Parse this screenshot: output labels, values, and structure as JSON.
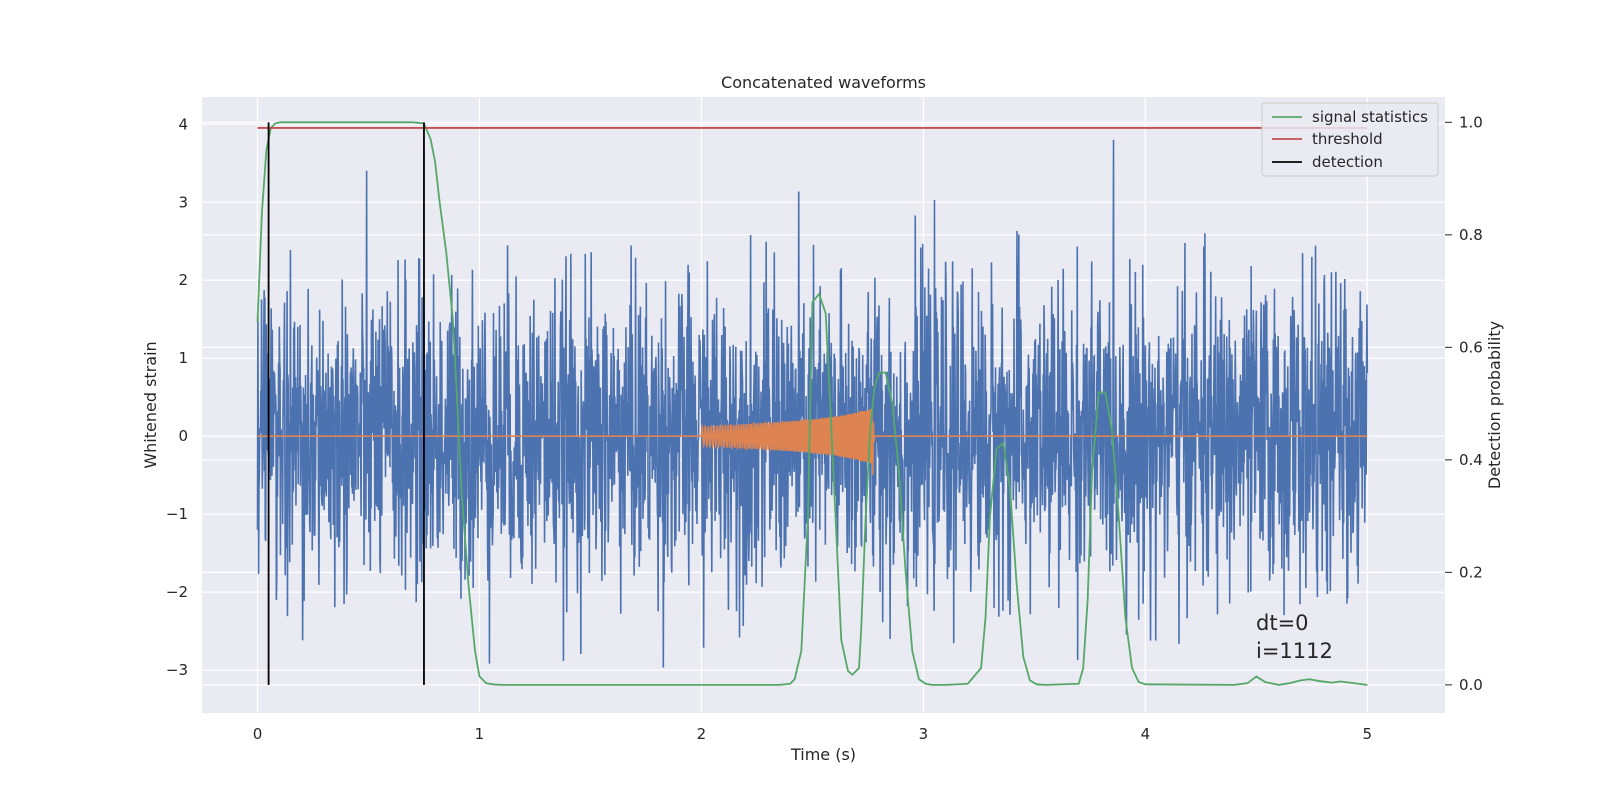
{
  "chart_data": {
    "type": "line",
    "title": "Concatenated waveforms",
    "xlabel": "Time (s)",
    "ylabel": "Whitened strain",
    "y2label": "Detection probability",
    "xlim": [
      -0.25,
      5.35
    ],
    "ylim": [
      -3.55,
      4.35
    ],
    "y2lim": [
      -0.05,
      1.045
    ],
    "x_ticks": [
      0,
      1,
      2,
      3,
      4,
      5
    ],
    "y_ticks": [
      -3,
      -2,
      -1,
      0,
      1,
      2,
      3,
      4
    ],
    "y2_ticks": [
      0.0,
      0.2,
      0.4,
      0.6,
      0.8,
      1.0
    ],
    "grid": true,
    "legend_position": "top-right",
    "colors": {
      "background": "#eaeaf2",
      "strain": "#4c72b0",
      "template": "#dd8452",
      "signal_statistics": "#55a868",
      "threshold": "#c44e52",
      "detection": "#000000"
    },
    "series": [
      {
        "name": "",
        "role": "whitened strain noise",
        "x_range": [
          0,
          5
        ],
        "amplitude_range": [
          -3.25,
          3.8
        ]
      },
      {
        "name": "",
        "role": "injected waveform",
        "x_range": [
          2.0,
          2.78
        ],
        "peak_amplitude": 0.35,
        "min_amplitude": -0.5
      },
      {
        "name": "signal statistics",
        "axis": "right",
        "x": [
          0,
          0.02,
          0.04,
          0.06,
          0.08,
          0.1,
          0.6,
          0.7,
          0.75,
          0.78,
          0.8,
          0.82,
          0.85,
          0.88,
          0.9,
          0.92,
          0.95,
          0.98,
          1.0,
          1.03,
          1.06,
          1.1,
          2.35,
          2.4,
          2.42,
          2.45,
          2.48,
          2.5,
          2.53,
          2.56,
          2.58,
          2.61,
          2.63,
          2.66,
          2.68,
          2.71,
          2.72,
          2.74,
          2.76,
          2.78,
          2.8,
          2.83,
          2.86,
          2.89,
          2.92,
          2.95,
          2.98,
          3.01,
          3.04,
          3.07,
          3.1,
          3.2,
          3.26,
          3.28,
          3.3,
          3.33,
          3.36,
          3.39,
          3.42,
          3.45,
          3.48,
          3.51,
          3.55,
          3.7,
          3.72,
          3.74,
          3.76,
          3.79,
          3.82,
          3.85,
          3.88,
          3.91,
          3.94,
          3.97,
          4.0,
          4.4,
          4.46,
          4.5,
          4.54,
          4.6,
          4.65,
          4.7,
          4.74,
          4.78,
          4.84,
          4.88,
          4.92,
          5.0
        ],
        "values": [
          0.645,
          0.84,
          0.95,
          0.99,
          0.998,
          1.0,
          1.0,
          1.0,
          0.998,
          0.97,
          0.93,
          0.86,
          0.77,
          0.65,
          0.5,
          0.34,
          0.18,
          0.06,
          0.015,
          0.003,
          0.001,
          0.0,
          0.0,
          0.002,
          0.01,
          0.06,
          0.3,
          0.68,
          0.695,
          0.66,
          0.5,
          0.25,
          0.08,
          0.025,
          0.018,
          0.03,
          0.1,
          0.3,
          0.45,
          0.53,
          0.555,
          0.555,
          0.5,
          0.38,
          0.2,
          0.06,
          0.01,
          0.002,
          0.0,
          0.0,
          0.0,
          0.002,
          0.03,
          0.12,
          0.3,
          0.42,
          0.43,
          0.35,
          0.18,
          0.05,
          0.008,
          0.001,
          0.0,
          0.002,
          0.03,
          0.15,
          0.38,
          0.52,
          0.52,
          0.45,
          0.3,
          0.12,
          0.03,
          0.005,
          0.001,
          0.0,
          0.003,
          0.015,
          0.005,
          0.0,
          0.003,
          0.008,
          0.01,
          0.007,
          0.004,
          0.006,
          0.004,
          0.0
        ]
      },
      {
        "name": "threshold",
        "axis": "right",
        "x": [
          0,
          5
        ],
        "values": [
          0.99,
          0.99
        ]
      },
      {
        "name": "detection",
        "axis": "right",
        "x_positions": [
          0.05,
          0.75
        ],
        "range": [
          0.0,
          1.0
        ]
      }
    ],
    "annotations": {
      "dt": "dt=0",
      "i": "i=1112"
    }
  }
}
